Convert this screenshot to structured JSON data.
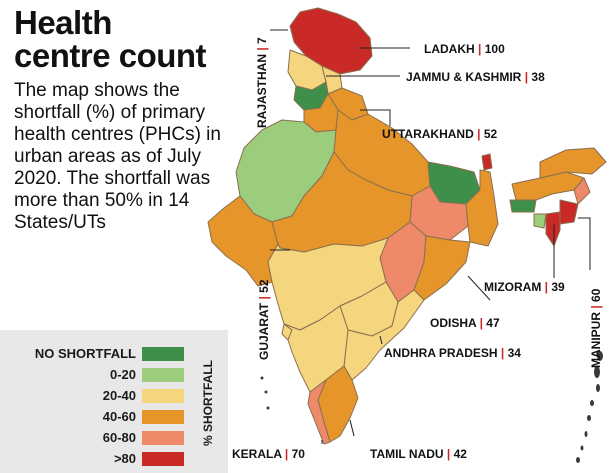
{
  "title_line1": "Health",
  "title_line2": "centre count",
  "description": "The map shows the shortfall (%) of primary health centres (PHCs) in urban areas as of July 2020. The shortfall was more than 50% in 14 States/UTs",
  "legend": {
    "axis_label": "% SHORTFALL",
    "items": [
      {
        "label": "NO SHORTFALL",
        "color": "#3e8f4a"
      },
      {
        "label": "0-20",
        "color": "#9ccd7d"
      },
      {
        "label": "20-40",
        "color": "#f6d57f"
      },
      {
        "label": "40-60",
        "color": "#e6952b"
      },
      {
        "label": "60-80",
        "color": "#ee8a6a"
      },
      {
        "label": ">80",
        "color": "#c92a27"
      }
    ]
  },
  "labels": {
    "ladakh": {
      "name": "LADAKH",
      "sep": "|",
      "value": "100"
    },
    "jk": {
      "name": "JAMMU & KASHMIR",
      "sep": "|",
      "value": "38"
    },
    "uttarakhand": {
      "name": "UTTARAKHAND",
      "sep": "|",
      "value": "52"
    },
    "rajasthan": {
      "name": "RAJASTHAN",
      "sep": "|",
      "value": "7"
    },
    "gujarat": {
      "name": "GUJARAT",
      "sep": "|",
      "value": "52"
    },
    "mizoram": {
      "name": "MIZORAM",
      "sep": "|",
      "value": "39"
    },
    "manipur": {
      "name": "MANIPUR",
      "sep": "|",
      "value": "60"
    },
    "odisha": {
      "name": "ODISHA",
      "sep": "|",
      "value": "47"
    },
    "andhra": {
      "name": "ANDHRA PRADESH",
      "sep": "|",
      "value": "34"
    },
    "kerala": {
      "name": "KERALA",
      "sep": "|",
      "value": "70"
    },
    "tamilnadu": {
      "name": "TAMIL NADU",
      "sep": "|",
      "value": "42"
    }
  }
}
